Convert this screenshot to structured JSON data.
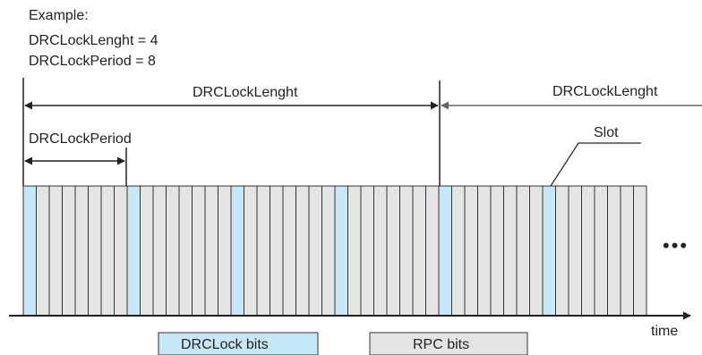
{
  "example": {
    "heading": "Example:",
    "length_line": "DRCLockLenght = 4",
    "period_line": "DRCLockPeriod = 8"
  },
  "labels": {
    "length_span": "DRCLockLenght",
    "length_span_next": "DRCLockLenght",
    "period_span": "DRCLockPeriod",
    "slot": "Slot",
    "ellipsis": "•••",
    "time_axis": "time"
  },
  "legend": {
    "drc_lock": "DRCLock bits",
    "rpc": "RPC bits"
  },
  "slots": {
    "count": 48,
    "drc_lock_period": 8
  },
  "colors": {
    "drc_lock_fill": "#c6e7f7",
    "rpc_fill": "#e4e4e4",
    "stroke": "#333333",
    "arrow_next": "#666666"
  }
}
